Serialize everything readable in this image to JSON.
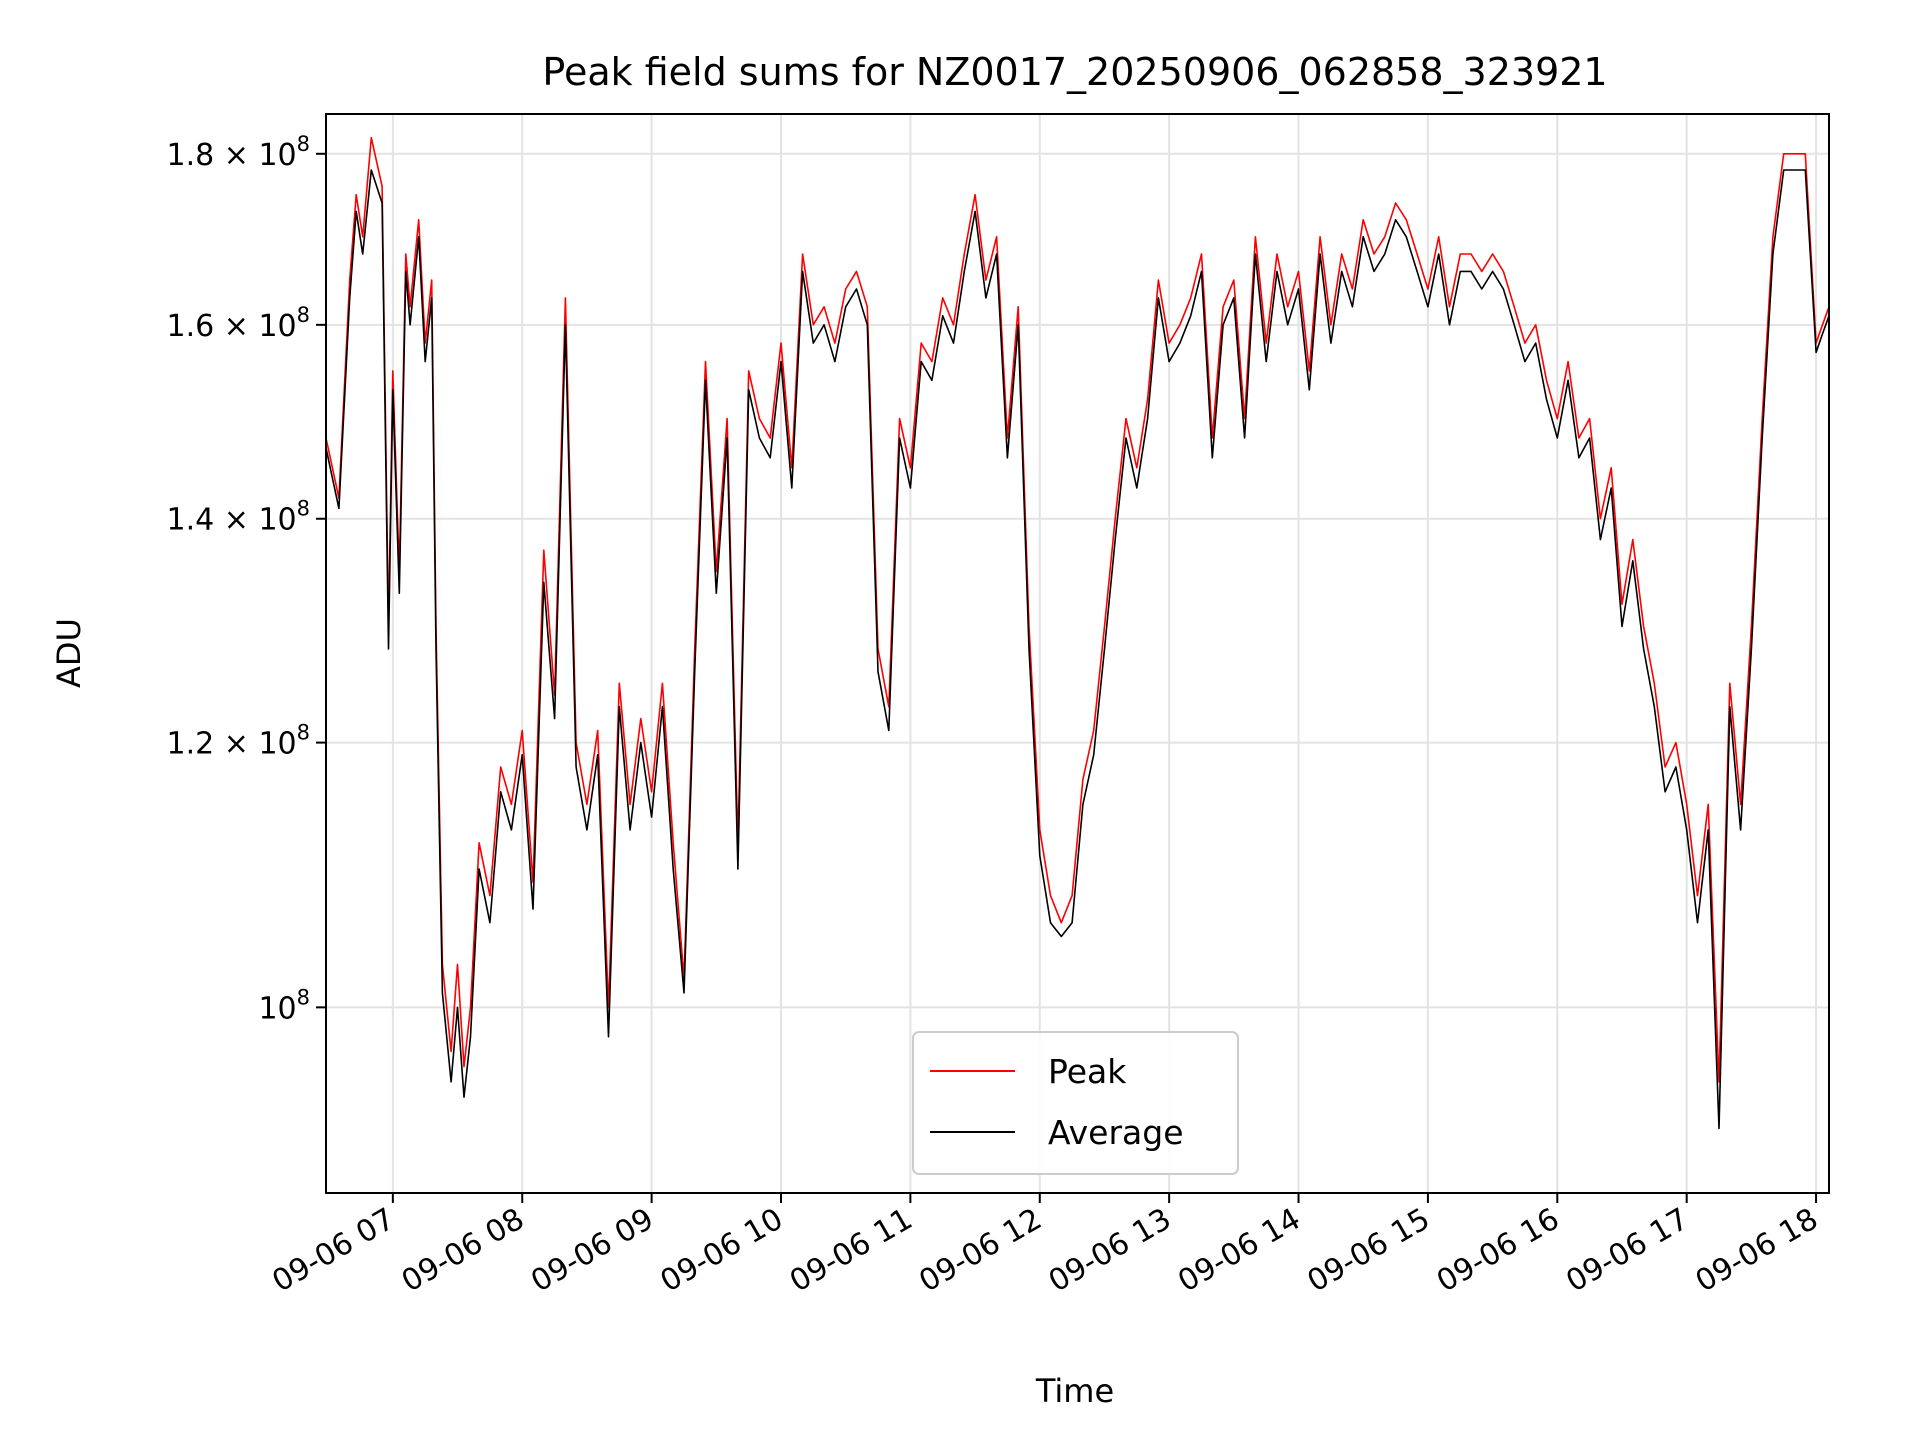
{
  "chart_data": {
    "type": "line",
    "title": "Peak field sums for NZ0017_20250906_062858_323921",
    "xlabel": "Time",
    "ylabel": "ADU",
    "y_scale": "log",
    "xlim": [
      "09-06 06:29",
      "09-06 18:06"
    ],
    "ylim": [
      88000000,
      185000000
    ],
    "grid": true,
    "legend_position": "lower center",
    "x_ticks": [
      "09-06 07",
      "09-06 08",
      "09-06 09",
      "09-06 10",
      "09-06 11",
      "09-06 12",
      "09-06 13",
      "09-06 14",
      "09-06 15",
      "09-06 16",
      "09-06 17",
      "09-06 18"
    ],
    "y_ticks": [
      {
        "value": 100000000,
        "mantissa": "",
        "base": "10",
        "exp": "8"
      },
      {
        "value": 120000000,
        "mantissa": "1.2",
        "base": "10",
        "exp": "8"
      },
      {
        "value": 140000000,
        "mantissa": "1.4",
        "base": "10",
        "exp": "8"
      },
      {
        "value": 160000000,
        "mantissa": "1.6",
        "base": "10",
        "exp": "8"
      },
      {
        "value": 180000000,
        "mantissa": "1.8",
        "base": "10",
        "exp": "8"
      }
    ],
    "times": [
      "06:29",
      "06:35",
      "06:40",
      "06:43",
      "06:46",
      "06:50",
      "06:55",
      "06:58",
      "07:00",
      "07:03",
      "07:06",
      "07:08",
      "07:12",
      "07:15",
      "07:18",
      "07:20",
      "07:23",
      "07:27",
      "07:30",
      "07:33",
      "07:36",
      "07:40",
      "07:45",
      "07:50",
      "07:55",
      "08:00",
      "08:05",
      "08:10",
      "08:15",
      "08:20",
      "08:25",
      "08:30",
      "08:35",
      "08:40",
      "08:45",
      "08:50",
      "08:55",
      "09:00",
      "09:05",
      "09:10",
      "09:15",
      "09:20",
      "09:25",
      "09:30",
      "09:35",
      "09:40",
      "09:45",
      "09:50",
      "09:55",
      "10:00",
      "10:05",
      "10:10",
      "10:15",
      "10:20",
      "10:25",
      "10:30",
      "10:35",
      "10:40",
      "10:45",
      "10:50",
      "10:55",
      "11:00",
      "11:05",
      "11:10",
      "11:15",
      "11:20",
      "11:25",
      "11:30",
      "11:35",
      "11:40",
      "11:45",
      "11:50",
      "11:55",
      "12:00",
      "12:05",
      "12:10",
      "12:15",
      "12:20",
      "12:25",
      "12:30",
      "12:35",
      "12:40",
      "12:45",
      "12:50",
      "12:55",
      "13:00",
      "13:05",
      "13:10",
      "13:15",
      "13:20",
      "13:25",
      "13:30",
      "13:35",
      "13:40",
      "13:45",
      "13:50",
      "13:55",
      "14:00",
      "14:05",
      "14:10",
      "14:15",
      "14:20",
      "14:25",
      "14:30",
      "14:35",
      "14:40",
      "14:45",
      "14:50",
      "14:55",
      "15:00",
      "15:05",
      "15:10",
      "15:15",
      "15:20",
      "15:25",
      "15:30",
      "15:35",
      "15:40",
      "15:45",
      "15:50",
      "15:55",
      "16:00",
      "16:05",
      "16:10",
      "16:15",
      "16:20",
      "16:25",
      "16:30",
      "16:35",
      "16:40",
      "16:45",
      "16:50",
      "16:55",
      "17:00",
      "17:05",
      "17:10",
      "17:15",
      "17:20",
      "17:25",
      "17:30",
      "17:35",
      "17:40",
      "17:45",
      "17:50",
      "17:55",
      "18:00",
      "18:03",
      "18:06"
    ],
    "series": [
      {
        "name": "Peak",
        "color": "#ff0000",
        "values": [
          148,
          142,
          165,
          175,
          170,
          182,
          176,
          130,
          155,
          135,
          168,
          162,
          172,
          158,
          165,
          130,
          103,
          97,
          103,
          96,
          100,
          112,
          108,
          118,
          115,
          121,
          109,
          137,
          124,
          163,
          120,
          115,
          121,
          100,
          125,
          115,
          122,
          116,
          125,
          112,
          102,
          128,
          156,
          135,
          150,
          112,
          155,
          150,
          148,
          158,
          145,
          168,
          160,
          162,
          158,
          164,
          166,
          162,
          128,
          123,
          150,
          145,
          158,
          156,
          163,
          160,
          168,
          175,
          165,
          170,
          148,
          162,
          130,
          113,
          108,
          106,
          108,
          117,
          121,
          130,
          140,
          150,
          145,
          152,
          165,
          158,
          160,
          163,
          168,
          148,
          162,
          165,
          150,
          170,
          158,
          168,
          162,
          166,
          155,
          170,
          160,
          168,
          164,
          172,
          168,
          170,
          174,
          172,
          168,
          164,
          170,
          162,
          168,
          168,
          166,
          168,
          166,
          162,
          158,
          160,
          154,
          150,
          156,
          148,
          150,
          140,
          145,
          132,
          138,
          130,
          125,
          118,
          120,
          115,
          108,
          115,
          95,
          125,
          115,
          130,
          150,
          170,
          180,
          180,
          180,
          158,
          160,
          162
        ]
      },
      {
        "name": "Average",
        "color": "#000000",
        "values": [
          147,
          141,
          163,
          173,
          168,
          178,
          174,
          128,
          153,
          133,
          166,
          160,
          170,
          156,
          163,
          128,
          101,
          95,
          100,
          94,
          98,
          110,
          106,
          116,
          113,
          119,
          107,
          134,
          122,
          160,
          118,
          113,
          119,
          98,
          123,
          113,
          120,
          114,
          123,
          110,
          101,
          126,
          154,
          133,
          148,
          110,
          153,
          148,
          146,
          156,
          143,
          166,
          158,
          160,
          156,
          162,
          164,
          160,
          126,
          121,
          148,
          143,
          156,
          154,
          161,
          158,
          166,
          173,
          163,
          168,
          146,
          160,
          128,
          111,
          106,
          105,
          106,
          115,
          119,
          128,
          138,
          148,
          143,
          150,
          163,
          156,
          158,
          161,
          166,
          146,
          160,
          163,
          148,
          168,
          156,
          166,
          160,
          164,
          153,
          168,
          158,
          166,
          162,
          170,
          166,
          168,
          172,
          170,
          166,
          162,
          168,
          160,
          166,
          166,
          164,
          166,
          164,
          160,
          156,
          158,
          152,
          148,
          154,
          146,
          148,
          138,
          143,
          130,
          136,
          128,
          123,
          116,
          118,
          113,
          106,
          113,
          92,
          123,
          113,
          128,
          148,
          168,
          178,
          178,
          178,
          157,
          159,
          161
        ]
      }
    ]
  }
}
